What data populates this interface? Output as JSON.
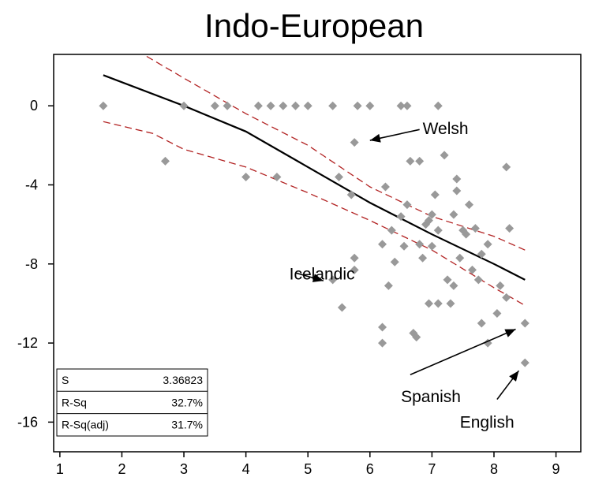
{
  "chart_data": {
    "type": "scatter",
    "title": "Indo-European",
    "xlabel": "",
    "ylabel": "",
    "xlim": [
      0.9,
      9.4
    ],
    "ylim": [
      -17.5,
      2.6
    ],
    "x_ticks": [
      1,
      2,
      3,
      4,
      5,
      6,
      7,
      8,
      9
    ],
    "y_ticks": [
      0,
      -4,
      -8,
      -12,
      -16
    ],
    "grid": false,
    "colors": {
      "points": "#999999",
      "fit_line": "#000000",
      "ci_line": "#b22222",
      "frame": "#000000"
    },
    "points": [
      {
        "x": 1.7,
        "y": 0
      },
      {
        "x": 2.7,
        "y": -2.8
      },
      {
        "x": 3.0,
        "y": 0
      },
      {
        "x": 3.5,
        "y": 0
      },
      {
        "x": 3.7,
        "y": 0
      },
      {
        "x": 4.0,
        "y": -3.6
      },
      {
        "x": 4.2,
        "y": 0
      },
      {
        "x": 4.4,
        "y": 0
      },
      {
        "x": 4.5,
        "y": -3.6
      },
      {
        "x": 4.6,
        "y": 0
      },
      {
        "x": 4.8,
        "y": 0
      },
      {
        "x": 5.0,
        "y": 0
      },
      {
        "x": 5.4,
        "y": 0
      },
      {
        "x": 5.4,
        "y": -8.8
      },
      {
        "x": 5.55,
        "y": -10.2
      },
      {
        "x": 5.8,
        "y": 0
      },
      {
        "x": 5.75,
        "y": -1.85
      },
      {
        "x": 5.5,
        "y": -3.6
      },
      {
        "x": 5.7,
        "y": -4.5
      },
      {
        "x": 5.75,
        "y": -7.7
      },
      {
        "x": 5.75,
        "y": -8.3
      },
      {
        "x": 6.0,
        "y": 0
      },
      {
        "x": 6.2,
        "y": -12.0
      },
      {
        "x": 6.2,
        "y": -11.2
      },
      {
        "x": 6.2,
        "y": -7.0
      },
      {
        "x": 6.25,
        "y": -4.1
      },
      {
        "x": 6.3,
        "y": -9.1
      },
      {
        "x": 6.35,
        "y": -6.3
      },
      {
        "x": 6.4,
        "y": -7.9
      },
      {
        "x": 6.5,
        "y": -5.6
      },
      {
        "x": 6.55,
        "y": -7.1
      },
      {
        "x": 6.6,
        "y": -5.0
      },
      {
        "x": 6.5,
        "y": 0
      },
      {
        "x": 6.6,
        "y": 0
      },
      {
        "x": 6.65,
        "y": -2.8
      },
      {
        "x": 6.7,
        "y": -11.5
      },
      {
        "x": 6.75,
        "y": -11.7
      },
      {
        "x": 6.8,
        "y": -2.8
      },
      {
        "x": 6.8,
        "y": -7.0
      },
      {
        "x": 6.9,
        "y": -6.0
      },
      {
        "x": 6.85,
        "y": -7.7
      },
      {
        "x": 6.95,
        "y": -5.8
      },
      {
        "x": 7.0,
        "y": -5.5
      },
      {
        "x": 6.95,
        "y": -10.0
      },
      {
        "x": 7.0,
        "y": -7.1
      },
      {
        "x": 7.1,
        "y": -10.0
      },
      {
        "x": 7.1,
        "y": -6.3
      },
      {
        "x": 7.05,
        "y": -4.5
      },
      {
        "x": 7.1,
        "y": 0
      },
      {
        "x": 7.2,
        "y": -2.5
      },
      {
        "x": 7.25,
        "y": -8.8
      },
      {
        "x": 7.35,
        "y": -9.1
      },
      {
        "x": 7.3,
        "y": -10.0
      },
      {
        "x": 7.35,
        "y": -5.5
      },
      {
        "x": 7.4,
        "y": -4.3
      },
      {
        "x": 7.4,
        "y": -3.7
      },
      {
        "x": 7.45,
        "y": -7.7
      },
      {
        "x": 7.5,
        "y": -6.3
      },
      {
        "x": 7.55,
        "y": -6.5
      },
      {
        "x": 7.6,
        "y": -5.0
      },
      {
        "x": 7.65,
        "y": -8.3
      },
      {
        "x": 7.7,
        "y": -6.2
      },
      {
        "x": 7.75,
        "y": -8.8
      },
      {
        "x": 7.8,
        "y": -7.5
      },
      {
        "x": 7.8,
        "y": -11.0
      },
      {
        "x": 7.9,
        "y": -12.0
      },
      {
        "x": 7.9,
        "y": -7.0
      },
      {
        "x": 8.05,
        "y": -10.5
      },
      {
        "x": 8.1,
        "y": -9.1
      },
      {
        "x": 8.2,
        "y": -3.1
      },
      {
        "x": 8.2,
        "y": -9.7
      },
      {
        "x": 8.25,
        "y": -6.2
      },
      {
        "x": 8.5,
        "y": -11.0
      },
      {
        "x": 8.5,
        "y": -13.0
      }
    ],
    "fit_line": [
      {
        "x": 1.7,
        "y": 1.55
      },
      {
        "x": 3.0,
        "y": 0.0
      },
      {
        "x": 4.0,
        "y": -1.3
      },
      {
        "x": 5.0,
        "y": -3.1
      },
      {
        "x": 6.0,
        "y": -4.9
      },
      {
        "x": 7.0,
        "y": -6.5
      },
      {
        "x": 8.0,
        "y": -8.0
      },
      {
        "x": 8.5,
        "y": -8.8
      }
    ],
    "ci_upper": [
      {
        "x": 2.4,
        "y": 2.5
      },
      {
        "x": 3.0,
        "y": 1.4
      },
      {
        "x": 4.0,
        "y": -0.4
      },
      {
        "x": 5.0,
        "y": -2.0
      },
      {
        "x": 6.0,
        "y": -4.1
      },
      {
        "x": 7.0,
        "y": -5.6
      },
      {
        "x": 8.0,
        "y": -6.6
      },
      {
        "x": 8.5,
        "y": -7.3
      }
    ],
    "ci_lower": [
      {
        "x": 1.7,
        "y": -0.8
      },
      {
        "x": 2.5,
        "y": -1.4
      },
      {
        "x": 3.0,
        "y": -2.2
      },
      {
        "x": 4.0,
        "y": -3.1
      },
      {
        "x": 5.0,
        "y": -4.4
      },
      {
        "x": 6.0,
        "y": -5.8
      },
      {
        "x": 7.0,
        "y": -7.3
      },
      {
        "x": 8.0,
        "y": -9.2
      },
      {
        "x": 8.5,
        "y": -10.1
      }
    ],
    "annotations": [
      {
        "name": "welsh",
        "text": "Welsh",
        "text_x": 6.85,
        "text_y": -1.15,
        "arrow_from_x": 6.8,
        "arrow_from_y": -1.2,
        "arrow_to_x": 6.0,
        "arrow_to_y": -1.75
      },
      {
        "name": "icelandic",
        "text": "Icelandic",
        "text_x": 4.7,
        "text_y": -8.5,
        "arrow_from_x": 4.8,
        "arrow_from_y": -8.45,
        "arrow_to_x": 5.25,
        "arrow_to_y": -8.85
      },
      {
        "name": "spanish",
        "text": "Spanish",
        "text_x": 6.5,
        "text_y": -14.7,
        "arrow_from_x": 6.65,
        "arrow_from_y": -13.6,
        "arrow_to_x": 8.35,
        "arrow_to_y": -11.3
      },
      {
        "name": "english",
        "text": "English",
        "text_x": 7.45,
        "text_y": -16.0,
        "arrow_from_x": 8.05,
        "arrow_from_y": -14.85,
        "arrow_to_x": 8.4,
        "arrow_to_y": -13.4
      }
    ],
    "stats_box": [
      {
        "label": "S",
        "value": "3.36823"
      },
      {
        "label": "R-Sq",
        "value": "32.7%"
      },
      {
        "label": "R-Sq(adj)",
        "value": "31.7%"
      }
    ]
  }
}
